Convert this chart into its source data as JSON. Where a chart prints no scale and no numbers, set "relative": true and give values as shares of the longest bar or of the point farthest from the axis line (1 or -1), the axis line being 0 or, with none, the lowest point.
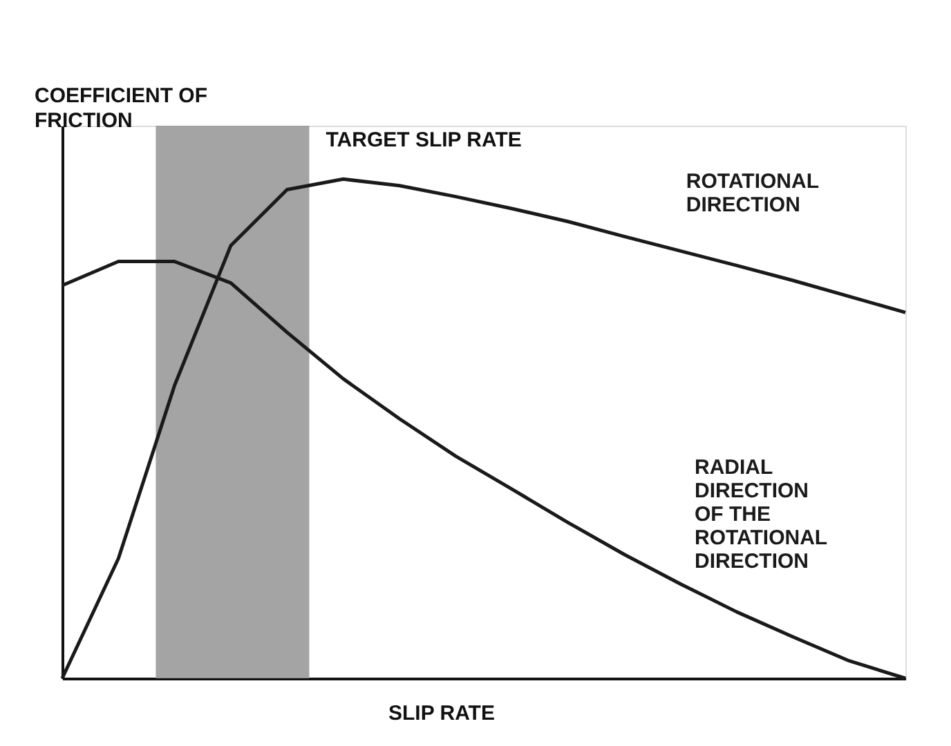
{
  "chart_data": {
    "type": "line",
    "relative": true,
    "xlabel": "SLIP RATE",
    "ylabel": "COEFFICIENT OF\nFRICTION",
    "categories": [
      null,
      null,
      null,
      null,
      null,
      null,
      null,
      null,
      null,
      null,
      null,
      null,
      null,
      null,
      null,
      null
    ],
    "grid": false,
    "marker": "none",
    "line_style": "solid",
    "series": [
      {
        "name": "ROTATIONAL\nDIRECTION",
        "color": "#1a1a1a",
        "values": [
          0,
          0.24,
          0.587,
          0.867,
          0.979,
          1,
          0.987,
          0.965,
          0.941,
          0.915,
          0.885,
          0.856,
          0.827,
          0.797,
          0.765,
          0.733
        ]
      },
      {
        "name": "RADIAL\nDIRECTION\nOF THE\nROTATIONAL\nDIRECTION",
        "color": "#1a1a1a",
        "values": [
          0.787,
          0.835,
          0.835,
          0.792,
          0.693,
          0.6,
          0.52,
          0.445,
          0.379,
          0.312,
          0.248,
          0.189,
          0.133,
          0.083,
          0.035,
          0
        ]
      }
    ],
    "annotations": [
      "TARGET SLIP RATE"
    ]
  }
}
